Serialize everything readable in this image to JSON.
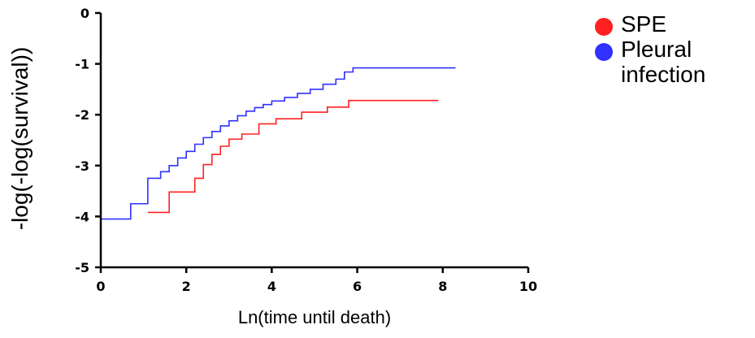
{
  "chart_data": {
    "type": "line",
    "title": "",
    "xlabel": "Ln(time until death)",
    "ylabel": "-log(-log(survival))",
    "xlim": [
      0,
      10
    ],
    "ylim": [
      -5,
      0
    ],
    "xticks": [
      "0",
      "2",
      "4",
      "6",
      "8",
      "10"
    ],
    "yticks": [
      "0",
      "-1",
      "-2",
      "-3",
      "-4",
      "-5"
    ],
    "legend_position": "top-right, outside plot",
    "series": [
      {
        "name": "SPE",
        "color": "#ff2020",
        "step": true,
        "x": [
          1.1,
          1.6,
          2.2,
          2.4,
          2.6,
          2.8,
          3.0,
          3.3,
          3.7,
          4.1,
          4.7,
          5.3,
          5.8,
          7.9
        ],
        "y": [
          -3.92,
          -3.52,
          -3.25,
          -2.98,
          -2.78,
          -2.62,
          -2.48,
          -2.38,
          -2.18,
          -2.08,
          -1.95,
          -1.85,
          -1.72,
          -1.72
        ]
      },
      {
        "name": "Pleural infection",
        "color": "#3030ff",
        "step": true,
        "x": [
          0.0,
          0.7,
          1.1,
          1.4,
          1.6,
          1.8,
          2.0,
          2.2,
          2.4,
          2.6,
          2.8,
          3.0,
          3.2,
          3.4,
          3.6,
          3.8,
          4.0,
          4.3,
          4.6,
          4.9,
          5.2,
          5.5,
          5.7,
          5.9,
          8.3
        ],
        "y": [
          -4.05,
          -3.75,
          -3.25,
          -3.12,
          -3.0,
          -2.85,
          -2.72,
          -2.58,
          -2.45,
          -2.33,
          -2.22,
          -2.12,
          -2.02,
          -1.93,
          -1.86,
          -1.8,
          -1.73,
          -1.66,
          -1.58,
          -1.5,
          -1.4,
          -1.3,
          -1.16,
          -1.08,
          -1.08
        ]
      }
    ]
  }
}
